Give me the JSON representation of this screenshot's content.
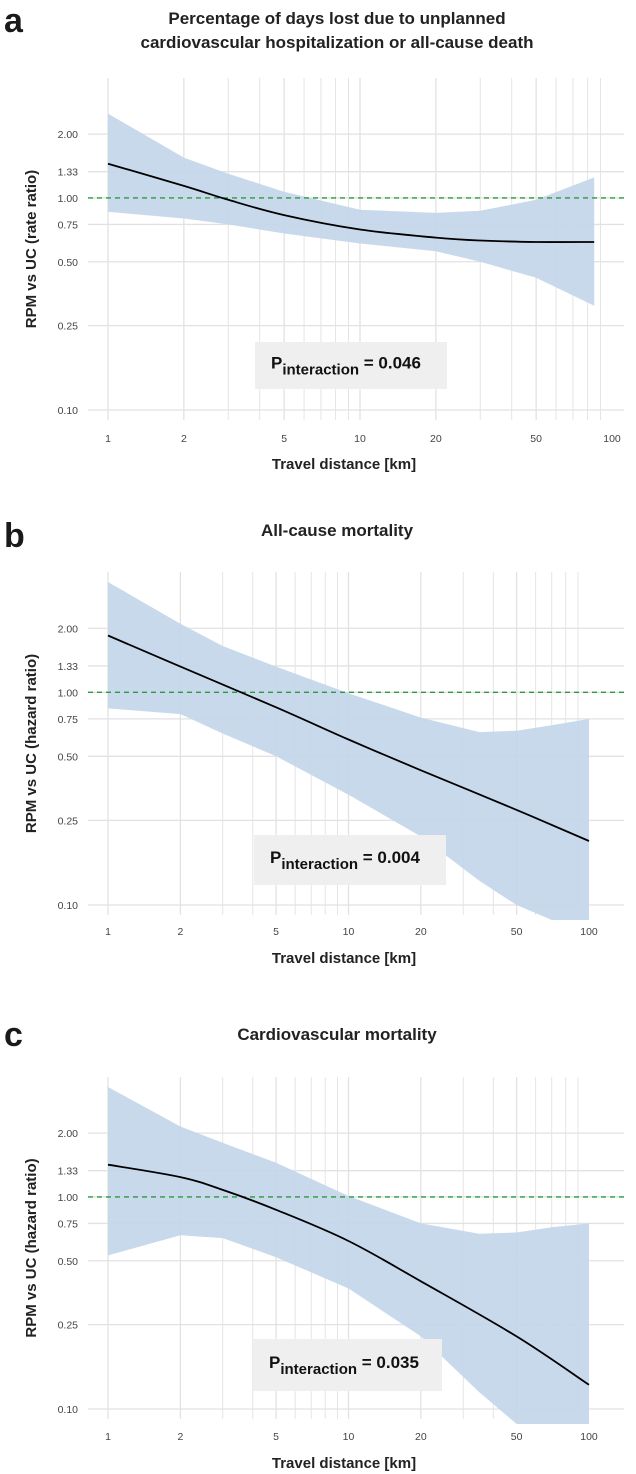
{
  "chart_data": [
    {
      "panel": "a",
      "type": "line",
      "title_lines": [
        "Percentage of days lost due to unplanned",
        "cardiovascular hospitalization or all-cause death"
      ],
      "xlabel": "Travel distance [km]",
      "ylabel": "RPM vs UC (rate ratio)",
      "x_scale": "log",
      "y_scale": "log",
      "xlim": [
        1,
        100
      ],
      "ylim": [
        0.1,
        3.3
      ],
      "x_ticks": [
        1,
        2,
        5,
        10,
        20,
        50,
        100
      ],
      "x_tick_labels": [
        "1",
        "2",
        "5",
        "10",
        "20",
        "50",
        "100"
      ],
      "y_ticks": [
        0.1,
        0.25,
        0.5,
        0.75,
        1.0,
        1.33,
        2.0
      ],
      "y_tick_labels": [
        "0.10",
        "0.25",
        "0.50",
        "0.75",
        "1.00",
        "1.33",
        "2.00"
      ],
      "reference_line": 1.0,
      "estimate": {
        "x": [
          1,
          2,
          3,
          5,
          10,
          20,
          30,
          50,
          85
        ],
        "y": [
          1.45,
          1.14,
          0.98,
          0.83,
          0.71,
          0.65,
          0.63,
          0.62,
          0.62
        ]
      },
      "ci": {
        "x": [
          1,
          2,
          3,
          5,
          10,
          20,
          30,
          50,
          85
        ],
        "lower": [
          0.86,
          0.8,
          0.75,
          0.68,
          0.61,
          0.56,
          0.5,
          0.42,
          0.31
        ],
        "upper": [
          2.5,
          1.55,
          1.3,
          1.07,
          0.88,
          0.85,
          0.87,
          0.98,
          1.25
        ]
      },
      "annotation": {
        "prefix": "P",
        "subscript": "interaction",
        "value": " = 0.046"
      }
    },
    {
      "panel": "b",
      "type": "line",
      "title_lines": [
        "All-cause mortality"
      ],
      "xlabel": "Travel distance [km]",
      "ylabel": "RPM vs UC (hazard ratio)",
      "x_scale": "log",
      "y_scale": "log",
      "xlim": [
        1,
        100
      ],
      "ylim": [
        0.1,
        3.3
      ],
      "x_ticks": [
        1,
        2,
        5,
        10,
        20,
        50,
        100
      ],
      "x_tick_labels": [
        "1",
        "2",
        "5",
        "10",
        "20",
        "50",
        "100"
      ],
      "y_ticks": [
        0.1,
        0.25,
        0.5,
        0.75,
        1.0,
        1.33,
        2.0
      ],
      "y_tick_labels": [
        "0.10",
        "0.25",
        "0.50",
        "0.75",
        "1.00",
        "1.33",
        "2.00"
      ],
      "reference_line": 1.0,
      "estimate": {
        "x": [
          1,
          2,
          5,
          10,
          20,
          50,
          100
        ],
        "y": [
          1.85,
          1.32,
          0.85,
          0.6,
          0.43,
          0.28,
          0.2
        ]
      },
      "ci": {
        "x": [
          1,
          2,
          3,
          5,
          10,
          20,
          35,
          50,
          70,
          100
        ],
        "lower": [
          0.84,
          0.79,
          0.64,
          0.5,
          0.33,
          0.21,
          0.13,
          0.1,
          0.085,
          0.085
        ],
        "upper": [
          3.3,
          2.1,
          1.65,
          1.32,
          0.99,
          0.76,
          0.65,
          0.66,
          0.7,
          0.75
        ]
      },
      "annotation": {
        "prefix": "P",
        "subscript": "interaction",
        "value": " = 0.004"
      }
    },
    {
      "panel": "c",
      "type": "line",
      "title_lines": [
        "Cardiovascular mortality"
      ],
      "xlabel": "Travel distance [km]",
      "ylabel": "RPM vs UC (hazard ratio)",
      "x_scale": "log",
      "y_scale": "log",
      "xlim": [
        1,
        100
      ],
      "ylim": [
        0.1,
        3.3
      ],
      "x_ticks": [
        1,
        2,
        5,
        10,
        20,
        50,
        100
      ],
      "x_tick_labels": [
        "1",
        "2",
        "5",
        "10",
        "20",
        "50",
        "100"
      ],
      "y_ticks": [
        0.1,
        0.25,
        0.5,
        0.75,
        1.0,
        1.33,
        2.0
      ],
      "y_tick_labels": [
        "0.10",
        "0.25",
        "0.50",
        "0.75",
        "1.00",
        "1.33",
        "2.00"
      ],
      "reference_line": 1.0,
      "estimate": {
        "x": [
          1,
          2,
          3,
          5,
          10,
          20,
          50,
          100
        ],
        "y": [
          1.42,
          1.24,
          1.08,
          0.87,
          0.62,
          0.4,
          0.22,
          0.13
        ]
      },
      "ci": {
        "x": [
          1,
          2,
          3,
          5,
          10,
          20,
          35,
          50,
          70,
          100
        ],
        "lower": [
          0.53,
          0.66,
          0.64,
          0.52,
          0.37,
          0.22,
          0.12,
          0.085,
          0.085,
          0.085
        ],
        "upper": [
          3.3,
          2.15,
          1.8,
          1.45,
          1.01,
          0.75,
          0.67,
          0.68,
          0.72,
          0.75
        ]
      },
      "annotation": {
        "prefix": "P",
        "subscript": "interaction",
        "value": " = 0.035"
      }
    }
  ],
  "colors": {
    "ci_fill": "#c4d6ea",
    "estimate_line": "#000000",
    "reference_line": "#2a9a3c",
    "grid": "#e2e2e2",
    "annotation_box": "#efefef"
  }
}
